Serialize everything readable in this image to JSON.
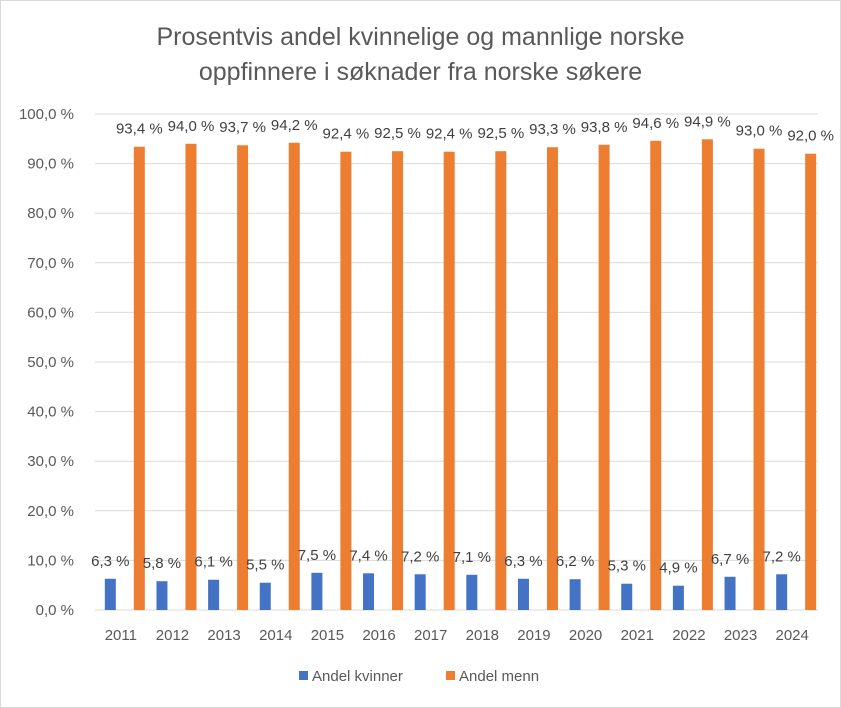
{
  "chart_data": {
    "type": "bar",
    "title": "Prosentvis andel kvinnelige og mannlige norske oppfinnere i søknader fra norske søkere",
    "title_lines": [
      "Prosentvis andel kvinnelige og mannlige norske",
      "oppfinnere i søknader fra norske søkere"
    ],
    "categories": [
      "2011",
      "2012",
      "2013",
      "2014",
      "2015",
      "2016",
      "2017",
      "2018",
      "2019",
      "2020",
      "2021",
      "2022",
      "2023",
      "2024"
    ],
    "series": [
      {
        "name": "Andel kvinner",
        "color": "#4472c4",
        "values": [
          6.3,
          5.8,
          6.1,
          5.5,
          7.5,
          7.4,
          7.2,
          7.1,
          6.3,
          6.2,
          5.3,
          4.9,
          6.7,
          7.2
        ],
        "labels": [
          "6,3 %",
          "5,8 %",
          "6,1 %",
          "5,5 %",
          "7,5 %",
          "7,4 %",
          "7,2 %",
          "7,1 %",
          "6,3 %",
          "6,2 %",
          "5,3 %",
          "4,9 %",
          "6,7 %",
          "7,2 %"
        ]
      },
      {
        "name": "Andel menn",
        "color": "#ed7d31",
        "values": [
          93.4,
          94.0,
          93.7,
          94.2,
          92.4,
          92.5,
          92.4,
          92.5,
          93.3,
          93.8,
          94.6,
          94.9,
          93.0,
          92.0
        ],
        "labels": [
          "93,4 %",
          "94,0 %",
          "93,7 %",
          "94,2 %",
          "92,4 %",
          "92,5 %",
          "92,4 %",
          "92,5 %",
          "93,3 %",
          "93,8 %",
          "94,6 %",
          "94,9 %",
          "93,0 %",
          "92,0 %"
        ]
      }
    ],
    "ylim": [
      0,
      100
    ],
    "yticks": [
      0,
      10,
      20,
      30,
      40,
      50,
      60,
      70,
      80,
      90,
      100
    ],
    "ytick_labels": [
      "0,0 %",
      "10,0 %",
      "20,0 %",
      "30,0 %",
      "40,0 %",
      "50,0 %",
      "60,0 %",
      "70,0 %",
      "80,0 %",
      "90,0 %",
      "100,0 %"
    ],
    "xlabel": "",
    "ylabel": "",
    "grid": true,
    "gridline_color": "#d9d9d9",
    "legend_position": "bottom"
  }
}
